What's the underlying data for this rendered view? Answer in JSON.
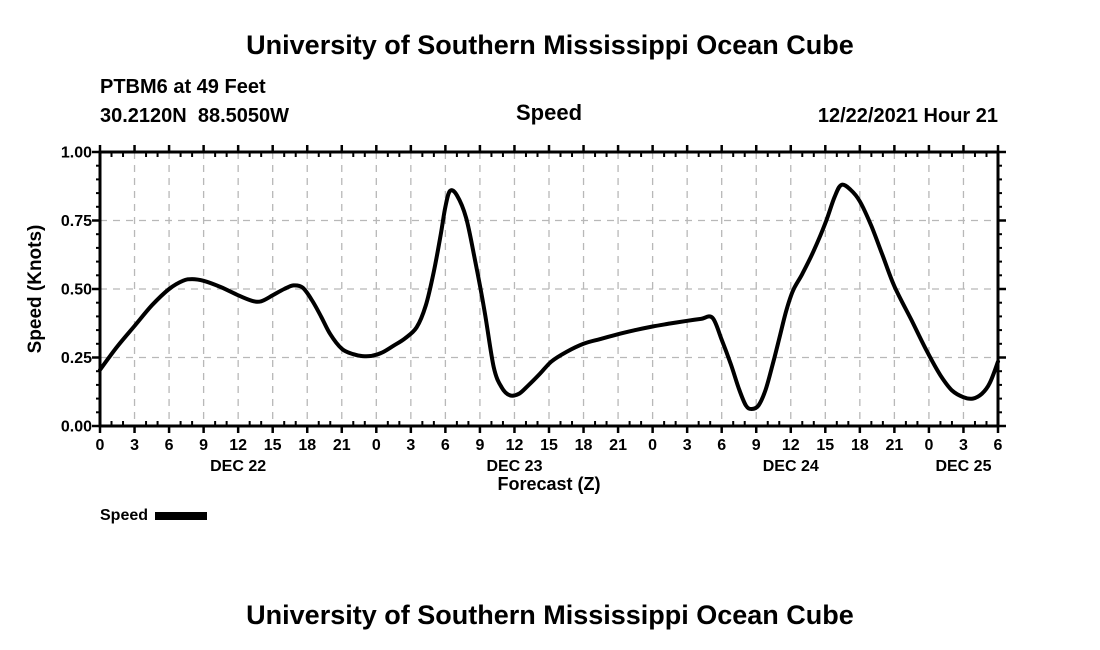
{
  "titles": {
    "top": "University of Southern Mississippi Ocean Cube",
    "bottom": "University of Southern Mississippi Ocean Cube"
  },
  "header": {
    "station": "PTBM6 at 49 Feet",
    "coordinates": "30.2120N  88.5050W",
    "panel_title": "Speed",
    "run_time": "12/22/2021 Hour 21"
  },
  "legend": {
    "label": "Speed",
    "swatch_color": "#000000"
  },
  "chart_data": {
    "type": "line",
    "title": "Speed",
    "xlabel": "Forecast (Z)",
    "ylabel": "Speed (Knots)",
    "ylim": [
      0,
      1
    ],
    "xlim_hours": [
      0,
      78
    ],
    "grid": true,
    "legend_position": "bottom-left",
    "colors": {
      "line": "#000000",
      "grid": "#b8b8b8",
      "axis": "#000000"
    },
    "x_axis": {
      "major_step_hours": 3,
      "minor_step_hours": 1,
      "tick_labels": [
        "0",
        "3",
        "6",
        "9",
        "12",
        "15",
        "18",
        "21",
        "0",
        "3",
        "6",
        "9",
        "12",
        "15",
        "18",
        "21",
        "0",
        "3",
        "6",
        "9",
        "12",
        "15",
        "18",
        "21",
        "0",
        "3",
        "6"
      ]
    },
    "y_axis": {
      "major_step": 0.25,
      "minor_step": 0.05,
      "tick_labels": [
        "0.00",
        "0.25",
        "0.50",
        "0.75",
        "1.00"
      ]
    },
    "date_labels": [
      {
        "label": "DEC 22",
        "hour": 12
      },
      {
        "label": "DEC 23",
        "hour": 36
      },
      {
        "label": "DEC 24",
        "hour": 60
      },
      {
        "label": "DEC 25",
        "hour": 75
      }
    ],
    "series": [
      {
        "name": "Speed",
        "color": "#000000",
        "units": "Knots",
        "points_hour_knots": [
          [
            0,
            0.205
          ],
          [
            1.5,
            0.29
          ],
          [
            3,
            0.365
          ],
          [
            4.5,
            0.44
          ],
          [
            6,
            0.5
          ],
          [
            7.2,
            0.53
          ],
          [
            8,
            0.536
          ],
          [
            9,
            0.53
          ],
          [
            10.5,
            0.507
          ],
          [
            12,
            0.477
          ],
          [
            13.2,
            0.457
          ],
          [
            14,
            0.455
          ],
          [
            15,
            0.477
          ],
          [
            16,
            0.5
          ],
          [
            16.8,
            0.513
          ],
          [
            17.6,
            0.505
          ],
          [
            18.4,
            0.46
          ],
          [
            19.2,
            0.4
          ],
          [
            20,
            0.335
          ],
          [
            21,
            0.282
          ],
          [
            22,
            0.262
          ],
          [
            22.8,
            0.255
          ],
          [
            23.6,
            0.256
          ],
          [
            24.5,
            0.268
          ],
          [
            25.5,
            0.293
          ],
          [
            26.5,
            0.32
          ],
          [
            27.5,
            0.36
          ],
          [
            28.3,
            0.44
          ],
          [
            29,
            0.565
          ],
          [
            29.6,
            0.7
          ],
          [
            30,
            0.8
          ],
          [
            30.4,
            0.858
          ],
          [
            31,
            0.842
          ],
          [
            31.8,
            0.76
          ],
          [
            32.6,
            0.6
          ],
          [
            33.4,
            0.42
          ],
          [
            34.2,
            0.215
          ],
          [
            34.9,
            0.14
          ],
          [
            35.6,
            0.112
          ],
          [
            36.4,
            0.118
          ],
          [
            37.2,
            0.148
          ],
          [
            38.2,
            0.19
          ],
          [
            39.2,
            0.235
          ],
          [
            40.5,
            0.27
          ],
          [
            42,
            0.3
          ],
          [
            43.5,
            0.318
          ],
          [
            45,
            0.335
          ],
          [
            46.5,
            0.35
          ],
          [
            48,
            0.363
          ],
          [
            49.5,
            0.374
          ],
          [
            51,
            0.384
          ],
          [
            52.2,
            0.391
          ],
          [
            53.2,
            0.395
          ],
          [
            54,
            0.315
          ],
          [
            54.8,
            0.225
          ],
          [
            55.5,
            0.135
          ],
          [
            56.1,
            0.075
          ],
          [
            56.6,
            0.062
          ],
          [
            57.2,
            0.075
          ],
          [
            57.8,
            0.13
          ],
          [
            58.4,
            0.22
          ],
          [
            59,
            0.32
          ],
          [
            59.6,
            0.42
          ],
          [
            60.2,
            0.495
          ],
          [
            61,
            0.555
          ],
          [
            62,
            0.64
          ],
          [
            63,
            0.74
          ],
          [
            63.8,
            0.835
          ],
          [
            64.4,
            0.88
          ],
          [
            65.2,
            0.862
          ],
          [
            66,
            0.82
          ],
          [
            67,
            0.73
          ],
          [
            68,
            0.62
          ],
          [
            69,
            0.51
          ],
          [
            70.5,
            0.385
          ],
          [
            71.8,
            0.275
          ],
          [
            73,
            0.185
          ],
          [
            74,
            0.13
          ],
          [
            75,
            0.105
          ],
          [
            75.8,
            0.1
          ],
          [
            76.6,
            0.118
          ],
          [
            77.3,
            0.158
          ],
          [
            78,
            0.235
          ]
        ]
      }
    ]
  }
}
